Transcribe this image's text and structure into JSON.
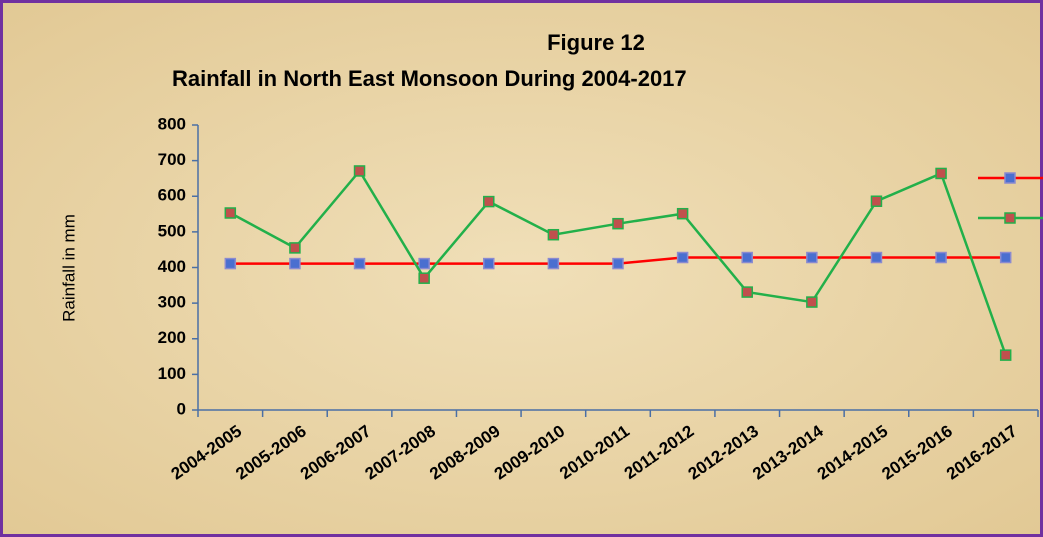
{
  "chart_data": {
    "type": "line",
    "title": "Figure 12",
    "subtitle": "Rainfall in North East Monsoon During 2004-2017",
    "y_label": "Rainfall in mm",
    "categories": [
      "2004-2005",
      "2005-2006",
      "2006-2007",
      "2007-2008",
      "2008-2009",
      "2009-2010",
      "2010-2011",
      "2011-2012",
      "2012-2013",
      "2013-2014",
      "2014-2015",
      "2015-2016",
      "2016-2017"
    ],
    "series": [
      {
        "color": "#ff0000",
        "values": [
          411,
          411,
          411,
          411,
          411,
          411,
          411,
          428,
          428,
          428,
          428,
          428,
          428
        ]
      },
      {
        "color": "#22b04a",
        "values": [
          553,
          455,
          671,
          370,
          585,
          492,
          523,
          551,
          331,
          303,
          586,
          664,
          154
        ]
      }
    ],
    "ylim": [
      0,
      800
    ],
    "yticks": [
      0,
      100,
      200,
      300,
      400,
      500,
      600,
      700,
      800
    ]
  }
}
